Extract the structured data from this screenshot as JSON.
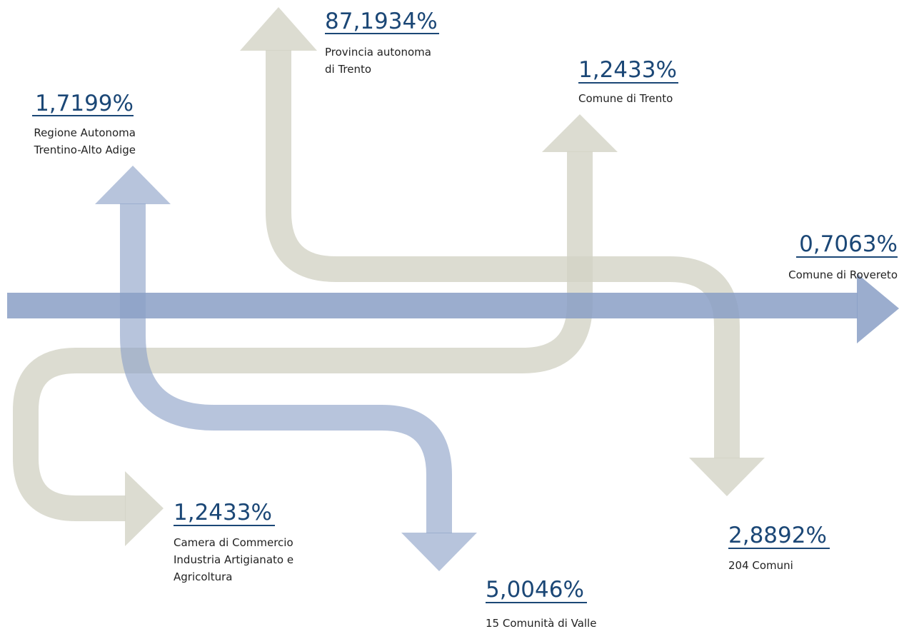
{
  "items": [
    {
      "value": "87,1934%",
      "lines": [
        "Provincia autonoma",
        "di Trento"
      ]
    },
    {
      "value": "1,2433%",
      "lines": [
        "Comune di Trento"
      ]
    },
    {
      "value": "1,7199%",
      "lines": [
        "Regione Autonoma",
        "Trentino-Alto Adige"
      ]
    },
    {
      "value": "0,7063%",
      "lines": [
        "Comune di Rovereto"
      ]
    },
    {
      "value": "1,2433%",
      "lines": [
        "Camera di Commercio",
        "Industria Artigianato e",
        "Agricoltura"
      ]
    },
    {
      "value": "2,8892%",
      "lines": [
        "204 Comuni"
      ]
    },
    {
      "value": "5,0046%",
      "lines": [
        "15 Comunità di Valle"
      ]
    }
  ]
}
